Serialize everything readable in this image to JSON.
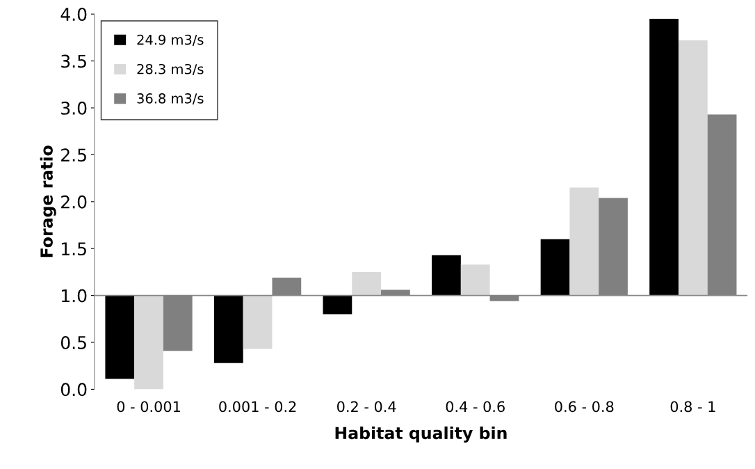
{
  "chart_data": {
    "type": "bar",
    "xlabel": "Habitat quality bin",
    "ylabel": "Forage ratio",
    "categories": [
      "0 - 0.001",
      "0.001 - 0.2",
      "0.2 - 0.4",
      "0.4 - 0.6",
      "0.6 - 0.8",
      "0.8 - 1"
    ],
    "series": [
      {
        "name": "24.9 m3/s",
        "color": "#000000",
        "base": [
          1.0,
          1.0,
          1.0,
          1.0,
          1.0,
          1.0
        ],
        "values": [
          -0.89,
          -0.72,
          -0.2,
          0.43,
          0.6,
          2.95
        ]
      },
      {
        "name": "28.3 m3/s",
        "color": "#d9d9d9",
        "base": [
          1.0,
          1.0,
          1.0,
          1.0,
          1.0,
          1.0
        ],
        "values": [
          -1.0,
          -0.57,
          0.25,
          0.33,
          1.15,
          2.72
        ]
      },
      {
        "name": "36.8 m3/s",
        "color": "#808080",
        "base": [
          1.0,
          1.0,
          1.0,
          1.0,
          1.0,
          1.0
        ],
        "values": [
          -0.59,
          0.19,
          0.06,
          -0.06,
          1.04,
          1.93
        ]
      }
    ],
    "ylim": [
      0.0,
      4.0
    ],
    "yticks": [
      {
        "value": 0,
        "label": "0.0"
      },
      0.5,
      {
        "value": 1,
        "label": "1.0"
      },
      1.5,
      {
        "value": 2,
        "label": "2.0"
      },
      2.5,
      {
        "value": 3,
        "label": "3.0"
      },
      3.5,
      {
        "value": 4,
        "label": "4.0"
      }
    ],
    "ref_lines": [
      {
        "axis": "y",
        "value": 1.0,
        "color": "#868686"
      }
    ],
    "grid": false,
    "legend": "top left"
  }
}
